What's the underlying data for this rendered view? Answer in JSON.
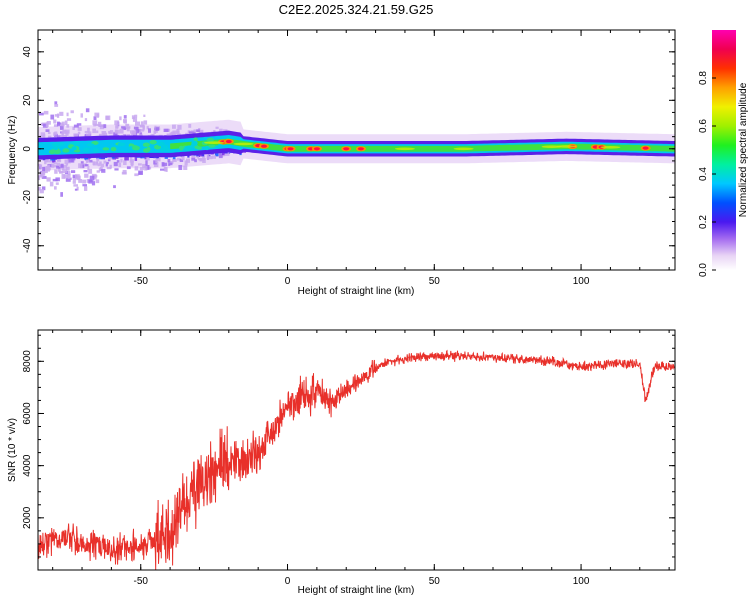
{
  "title": "C2E2.2025.324.21.59.G25",
  "chart_data": [
    {
      "type": "heatmap",
      "xlabel": "Height of straight line (km)",
      "ylabel": "Frequency (Hz)",
      "xlim": [
        -85,
        132
      ],
      "ylim": [
        -50,
        49
      ],
      "xticks": [
        -50,
        0,
        50,
        100
      ],
      "yticks": [
        -40,
        -20,
        0,
        20,
        40
      ],
      "colorbar": {
        "label": "Normalized spectral amplitude",
        "range": [
          0,
          1
        ],
        "ticks": [
          0.0,
          0.2,
          0.4,
          0.6,
          0.8
        ]
      },
      "band_center": [
        {
          "x": -85,
          "y": 0
        },
        {
          "x": -60,
          "y": 1
        },
        {
          "x": -40,
          "y": 1
        },
        {
          "x": -20,
          "y": 3
        },
        {
          "x": -15,
          "y": 2
        },
        {
          "x": 0,
          "y": 0
        },
        {
          "x": 20,
          "y": 0
        },
        {
          "x": 60,
          "y": 0
        },
        {
          "x": 95,
          "y": 1
        },
        {
          "x": 132,
          "y": 0
        }
      ]
    },
    {
      "type": "line",
      "xlabel": "Height of straight line (km)",
      "ylabel": "SNR (10 * v/v)",
      "xlim": [
        -85,
        132
      ],
      "ylim": [
        0,
        9200
      ],
      "xticks": [
        -50,
        0,
        50,
        100
      ],
      "yticks": [
        2000,
        4000,
        6000,
        8000
      ],
      "color": "#e8302a",
      "series": [
        {
          "x": [
            -85,
            -80,
            -75,
            -70,
            -65,
            -60,
            -55,
            -50,
            -45,
            -40,
            -35,
            -30,
            -25,
            -20,
            -15,
            -10,
            -5,
            0,
            5,
            10,
            15,
            20,
            25,
            30,
            35,
            40,
            50,
            60,
            70,
            80,
            90,
            100,
            110,
            120,
            122,
            125,
            132
          ],
          "y": [
            800,
            1200,
            1300,
            900,
            1000,
            700,
            900,
            900,
            1100,
            1500,
            2600,
            3100,
            3700,
            4200,
            4200,
            4600,
            5400,
            6200,
            6600,
            6800,
            6400,
            6900,
            7300,
            7700,
            8000,
            8100,
            8200,
            8200,
            8150,
            8100,
            8000,
            7800,
            7900,
            7900,
            6500,
            7800,
            7800
          ]
        }
      ]
    }
  ]
}
